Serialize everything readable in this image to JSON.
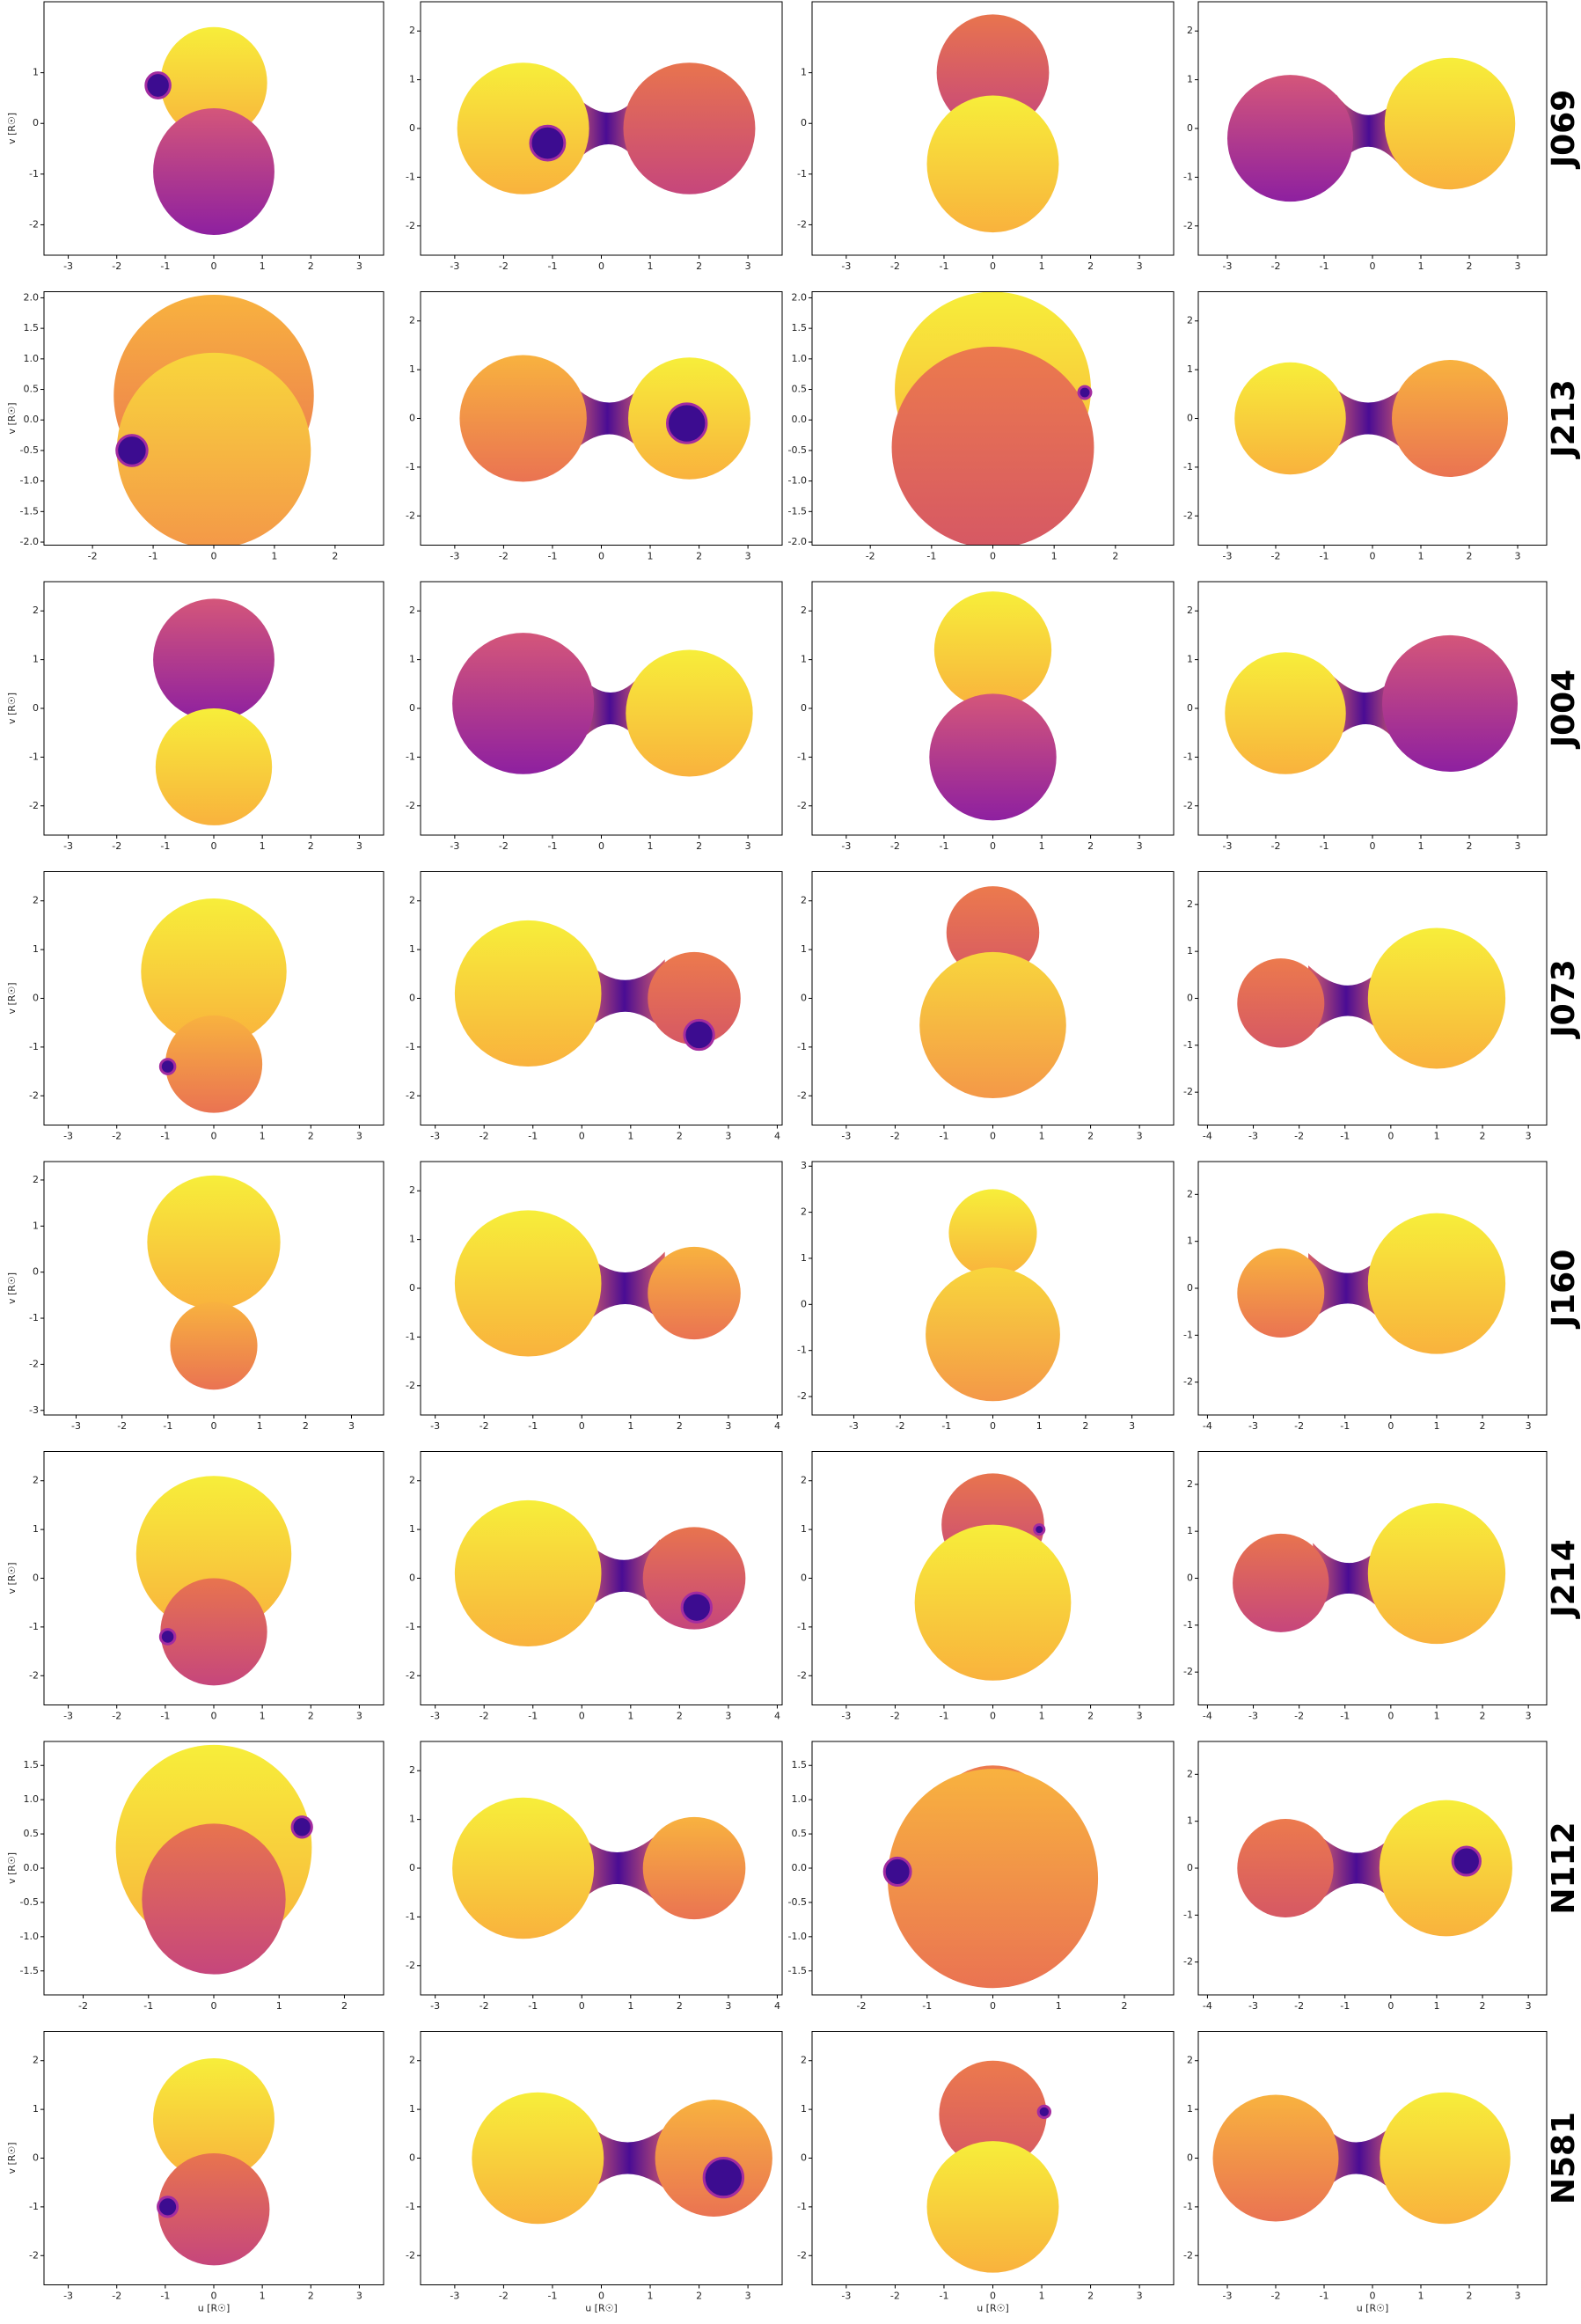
{
  "row_labels": [
    "J069",
    "J213",
    "J004",
    "J073",
    "J160",
    "J214",
    "N112",
    "N581"
  ],
  "chart_data": [
    {
      "type": "binary-model",
      "xlim": [
        -3.5,
        3.5
      ],
      "ylim": [
        -2.6,
        2.4
      ],
      "xticks": [
        -3,
        -2,
        -1,
        0,
        1,
        2,
        3
      ],
      "yticks": [
        -2,
        -1,
        0,
        1
      ],
      "ylabel": "v [R☉]"
    },
    {
      "type": "binary-model",
      "xlim": [
        -3.7,
        3.7
      ],
      "ylim": [
        -2.6,
        2.6
      ],
      "xticks": [
        -3,
        -2,
        -1,
        0,
        1,
        2,
        3
      ],
      "yticks": [
        -2,
        -1,
        0,
        1,
        2
      ]
    },
    {
      "type": "binary-model",
      "xlim": [
        -3.7,
        3.7
      ],
      "ylim": [
        -2.6,
        2.4
      ],
      "xticks": [
        -3,
        -2,
        -1,
        0,
        1,
        2,
        3
      ],
      "yticks": [
        -2,
        -1,
        0,
        1
      ]
    },
    {
      "type": "binary-model",
      "xlim": [
        -3.6,
        3.6
      ],
      "ylim": [
        -2.6,
        2.6
      ],
      "xticks": [
        -3,
        -2,
        -1,
        0,
        1,
        2,
        3
      ],
      "yticks": [
        -2,
        -1,
        0,
        1,
        2
      ]
    },
    {
      "type": "binary-model",
      "xlim": [
        -2.8,
        2.8
      ],
      "ylim": [
        -2.05,
        2.1
      ],
      "xticks": [
        -2,
        -1,
        0,
        1,
        2
      ],
      "yticks": [
        {
          "value": -2,
          "label": "-2.0"
        },
        -1.5,
        {
          "value": -1,
          "label": "-1.0"
        },
        -0.5,
        {
          "value": 0,
          "label": "0.0"
        },
        0.5,
        {
          "value": 1,
          "label": "1.0"
        },
        1.5,
        {
          "value": 2,
          "label": "2.0"
        }
      ],
      "ylabel": "v [R☉]"
    },
    {
      "type": "binary-model",
      "xlim": [
        -3.7,
        3.7
      ],
      "ylim": [
        -2.6,
        2.6
      ],
      "xticks": [
        -3,
        -2,
        -1,
        0,
        1,
        2,
        3
      ],
      "yticks": [
        -2,
        -1,
        0,
        1,
        2
      ]
    },
    {
      "type": "binary-model",
      "xlim": [
        -2.95,
        2.95
      ],
      "ylim": [
        -2.05,
        2.1
      ],
      "xticks": [
        -2,
        -1,
        0,
        1,
        2
      ],
      "yticks": [
        {
          "value": -2,
          "label": "-2.0"
        },
        -1.5,
        {
          "value": -1,
          "label": "-1.0"
        },
        -0.5,
        {
          "value": 0,
          "label": "0.0"
        },
        0.5,
        {
          "value": 1,
          "label": "1.0"
        },
        1.5,
        {
          "value": 2,
          "label": "2.0"
        }
      ]
    },
    {
      "type": "binary-model",
      "xlim": [
        -3.6,
        3.6
      ],
      "ylim": [
        -2.6,
        2.6
      ],
      "xticks": [
        -3,
        -2,
        -1,
        0,
        1,
        2,
        3
      ],
      "yticks": [
        -2,
        -1,
        0,
        1,
        2
      ]
    },
    {
      "type": "binary-model",
      "xlim": [
        -3.5,
        3.5
      ],
      "ylim": [
        -2.6,
        2.6
      ],
      "xticks": [
        -3,
        -2,
        -1,
        0,
        1,
        2,
        3
      ],
      "yticks": [
        -2,
        -1,
        0,
        1,
        2
      ],
      "ylabel": "v [R☉]"
    },
    {
      "type": "binary-model",
      "xlim": [
        -3.7,
        3.7
      ],
      "ylim": [
        -2.6,
        2.6
      ],
      "xticks": [
        -3,
        -2,
        -1,
        0,
        1,
        2,
        3
      ],
      "yticks": [
        -2,
        -1,
        0,
        1,
        2
      ]
    },
    {
      "type": "binary-model",
      "xlim": [
        -3.7,
        3.7
      ],
      "ylim": [
        -2.6,
        2.6
      ],
      "xticks": [
        -3,
        -2,
        -1,
        0,
        1,
        2,
        3
      ],
      "yticks": [
        -2,
        -1,
        0,
        1,
        2
      ]
    },
    {
      "type": "binary-model",
      "xlim": [
        -3.6,
        3.6
      ],
      "ylim": [
        -2.6,
        2.6
      ],
      "xticks": [
        -3,
        -2,
        -1,
        0,
        1,
        2,
        3
      ],
      "yticks": [
        -2,
        -1,
        0,
        1,
        2
      ]
    },
    {
      "type": "binary-model",
      "xlim": [
        -3.5,
        3.5
      ],
      "ylim": [
        -2.6,
        2.6
      ],
      "xticks": [
        -3,
        -2,
        -1,
        0,
        1,
        2,
        3
      ],
      "yticks": [
        -2,
        -1,
        0,
        1,
        2
      ],
      "ylabel": "v [R☉]"
    },
    {
      "type": "binary-model",
      "xlim": [
        -3.3,
        4.1
      ],
      "ylim": [
        -2.6,
        2.6
      ],
      "xticks": [
        -3,
        -2,
        -1,
        0,
        1,
        2,
        3,
        4
      ],
      "yticks": [
        -2,
        -1,
        0,
        1,
        2
      ]
    },
    {
      "type": "binary-model",
      "xlim": [
        -3.7,
        3.7
      ],
      "ylim": [
        -2.6,
        2.6
      ],
      "xticks": [
        -3,
        -2,
        -1,
        0,
        1,
        2,
        3
      ],
      "yticks": [
        -2,
        -1,
        0,
        1,
        2
      ]
    },
    {
      "type": "binary-model",
      "xlim": [
        -4.2,
        3.4
      ],
      "ylim": [
        -2.7,
        2.7
      ],
      "xticks": [
        -4,
        -3,
        -2,
        -1,
        0,
        1,
        2,
        3
      ],
      "yticks": [
        -2,
        -1,
        0,
        1,
        2
      ]
    },
    {
      "type": "binary-model",
      "xlim": [
        -3.7,
        3.7
      ],
      "ylim": [
        -3.1,
        2.4
      ],
      "xticks": [
        -3,
        -2,
        -1,
        0,
        1,
        2,
        3
      ],
      "yticks": [
        -3,
        -2,
        -1,
        0,
        1,
        2
      ],
      "ylabel": "v [R☉]"
    },
    {
      "type": "binary-model",
      "xlim": [
        -3.3,
        4.1
      ],
      "ylim": [
        -2.6,
        2.6
      ],
      "xticks": [
        -3,
        -2,
        -1,
        0,
        1,
        2,
        3,
        4
      ],
      "yticks": [
        -2,
        -1,
        0,
        1,
        2
      ]
    },
    {
      "type": "binary-model",
      "xlim": [
        -3.9,
        3.9
      ],
      "ylim": [
        -2.4,
        3.1
      ],
      "xticks": [
        -3,
        -2,
        -1,
        0,
        1,
        2,
        3
      ],
      "yticks": [
        -2,
        -1,
        0,
        1,
        2,
        3
      ]
    },
    {
      "type": "binary-model",
      "xlim": [
        -4.2,
        3.4
      ],
      "ylim": [
        -2.7,
        2.7
      ],
      "xticks": [
        -4,
        -3,
        -2,
        -1,
        0,
        1,
        2,
        3
      ],
      "yticks": [
        -2,
        -1,
        0,
        1,
        2
      ]
    },
    {
      "type": "binary-model",
      "xlim": [
        -3.5,
        3.5
      ],
      "ylim": [
        -2.6,
        2.6
      ],
      "xticks": [
        -3,
        -2,
        -1,
        0,
        1,
        2,
        3
      ],
      "yticks": [
        -2,
        -1,
        0,
        1,
        2
      ],
      "ylabel": "v [R☉]"
    },
    {
      "type": "binary-model",
      "xlim": [
        -3.3,
        4.1
      ],
      "ylim": [
        -2.6,
        2.6
      ],
      "xticks": [
        -3,
        -2,
        -1,
        0,
        1,
        2,
        3,
        4
      ],
      "yticks": [
        -2,
        -1,
        0,
        1,
        2
      ]
    },
    {
      "type": "binary-model",
      "xlim": [
        -3.7,
        3.7
      ],
      "ylim": [
        -2.6,
        2.6
      ],
      "xticks": [
        -3,
        -2,
        -1,
        0,
        1,
        2,
        3
      ],
      "yticks": [
        -2,
        -1,
        0,
        1,
        2
      ]
    },
    {
      "type": "binary-model",
      "xlim": [
        -4.2,
        3.4
      ],
      "ylim": [
        -2.7,
        2.7
      ],
      "xticks": [
        -4,
        -3,
        -2,
        -1,
        0,
        1,
        2,
        3
      ],
      "yticks": [
        -2,
        -1,
        0,
        1,
        2
      ]
    },
    {
      "type": "binary-model",
      "xlim": [
        -2.6,
        2.6
      ],
      "ylim": [
        -1.85,
        1.85
      ],
      "xticks": [
        -2,
        -1,
        0,
        1,
        2
      ],
      "yticks": [
        -1.5,
        {
          "value": -1,
          "label": "-1.0"
        },
        -0.5,
        {
          "value": 0,
          "label": "0.0"
        },
        0.5,
        {
          "value": 1,
          "label": "1.0"
        },
        1.5
      ],
      "ylabel": "v [R☉]"
    },
    {
      "type": "binary-model",
      "xlim": [
        -3.3,
        4.1
      ],
      "ylim": [
        -2.6,
        2.6
      ],
      "xticks": [
        -3,
        -2,
        -1,
        0,
        1,
        2,
        3,
        4
      ],
      "yticks": [
        -2,
        -1,
        0,
        1,
        2
      ]
    },
    {
      "type": "binary-model",
      "xlim": [
        -2.75,
        2.75
      ],
      "ylim": [
        -1.85,
        1.85
      ],
      "xticks": [
        -2,
        -1,
        0,
        1,
        2
      ],
      "yticks": [
        -1.5,
        {
          "value": -1,
          "label": "-1.0"
        },
        -0.5,
        {
          "value": 0,
          "label": "0.0"
        },
        0.5,
        {
          "value": 1,
          "label": "1.0"
        },
        1.5
      ]
    },
    {
      "type": "binary-model",
      "xlim": [
        -4.2,
        3.4
      ],
      "ylim": [
        -2.7,
        2.7
      ],
      "xticks": [
        -4,
        -3,
        -2,
        -1,
        0,
        1,
        2,
        3
      ],
      "yticks": [
        -2,
        -1,
        0,
        1,
        2
      ]
    },
    {
      "type": "binary-model",
      "xlim": [
        -3.5,
        3.5
      ],
      "ylim": [
        -2.6,
        2.6
      ],
      "xticks": [
        -3,
        -2,
        -1,
        0,
        1,
        2,
        3
      ],
      "yticks": [
        -2,
        -1,
        0,
        1,
        2
      ],
      "ylabel": "v [R☉]",
      "xlabel": "u [R☉]"
    },
    {
      "type": "binary-model",
      "xlim": [
        -3.7,
        3.7
      ],
      "ylim": [
        -2.6,
        2.6
      ],
      "xticks": [
        -3,
        -2,
        -1,
        0,
        1,
        2,
        3
      ],
      "yticks": [
        -2,
        -1,
        0,
        1,
        2
      ],
      "xlabel": "u [R☉]"
    },
    {
      "type": "binary-model",
      "xlim": [
        -3.7,
        3.7
      ],
      "ylim": [
        -2.6,
        2.6
      ],
      "xticks": [
        -3,
        -2,
        -1,
        0,
        1,
        2,
        3
      ],
      "yticks": [
        -2,
        -1,
        0,
        1,
        2
      ],
      "xlabel": "u [R☉]"
    },
    {
      "type": "binary-model",
      "xlim": [
        -3.6,
        3.6
      ],
      "ylim": [
        -2.6,
        2.6
      ],
      "xticks": [
        -3,
        -2,
        -1,
        0,
        1,
        2,
        3
      ],
      "yticks": [
        -2,
        -1,
        0,
        1,
        2
      ],
      "xlabel": "u [R☉]"
    }
  ]
}
